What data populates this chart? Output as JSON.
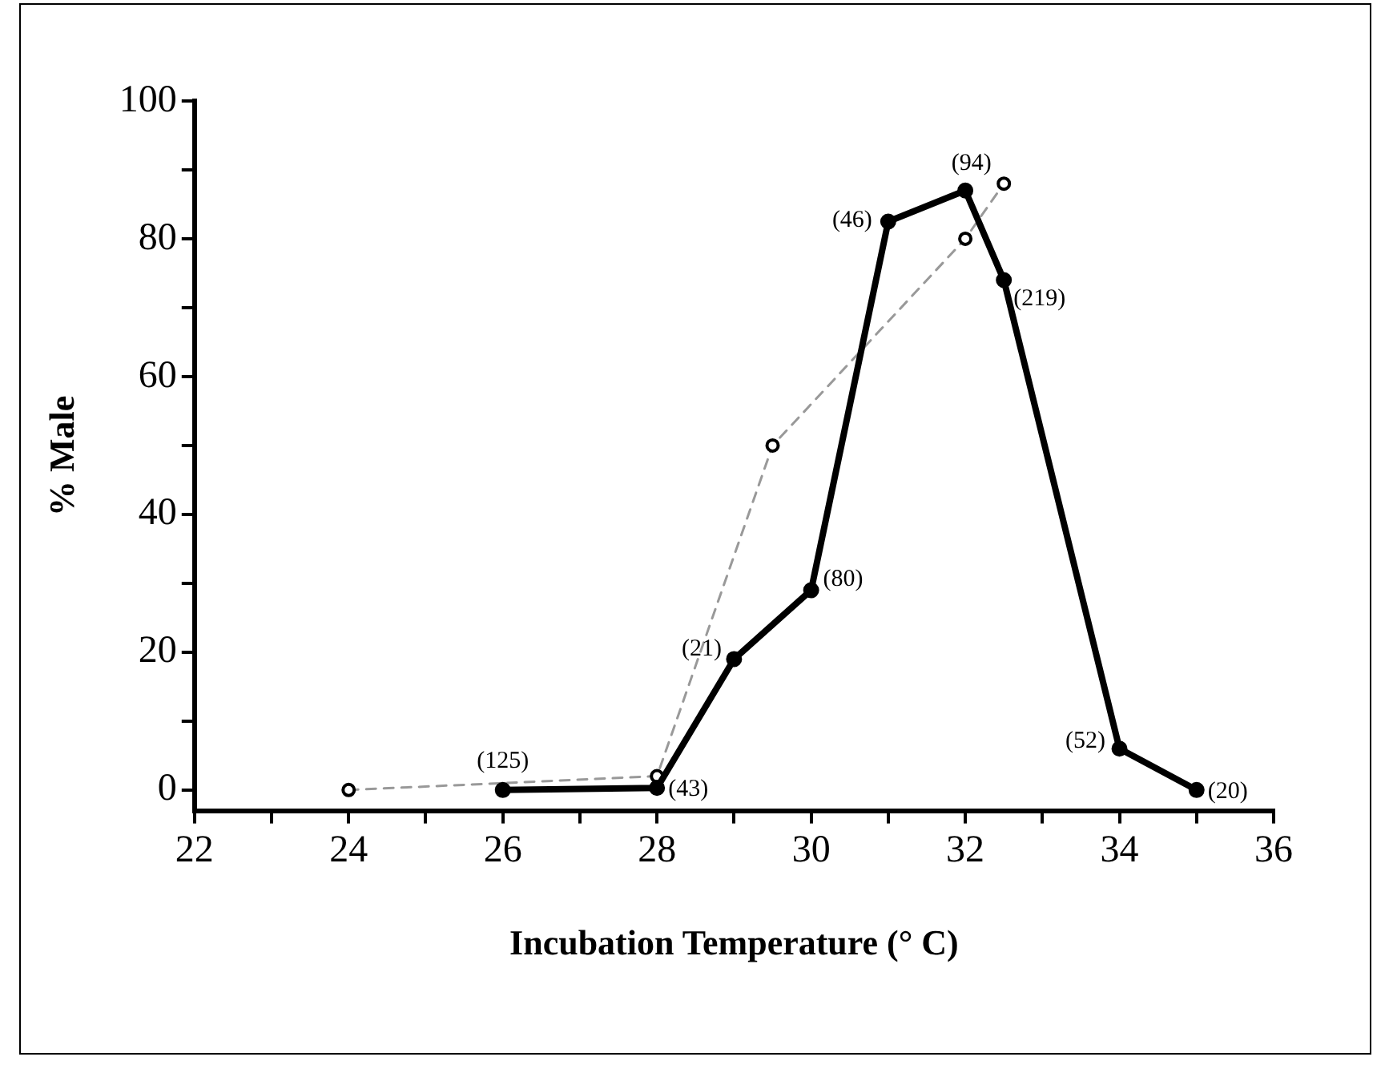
{
  "chart_data": {
    "type": "line",
    "xlabel": "Incubation Temperature (° C)",
    "ylabel": "% Male",
    "xlim": [
      22,
      36
    ],
    "ylim": [
      -3,
      100
    ],
    "xticks": [
      22,
      {
        "value": 23,
        "label": null
      },
      24,
      {
        "value": 25,
        "label": null
      },
      26,
      {
        "value": 27,
        "label": null
      },
      28,
      {
        "value": 29,
        "label": null
      },
      30,
      {
        "value": 31,
        "label": null
      },
      32,
      {
        "value": 33,
        "label": null
      },
      34,
      {
        "value": 35,
        "label": null
      },
      36
    ],
    "yticks": [
      0,
      {
        "value": 10,
        "label": null
      },
      20,
      {
        "value": 30,
        "label": null
      },
      40,
      {
        "value": 50,
        "label": null
      },
      60,
      {
        "value": 70,
        "label": null
      },
      80,
      {
        "value": 90,
        "label": null
      },
      100
    ],
    "grid": false,
    "legend": false,
    "marker": "circle",
    "series": [
      {
        "color": "#000000",
        "line_style": "solid",
        "x": [
          26,
          28,
          29,
          30,
          31,
          32,
          32.5,
          34,
          35
        ],
        "values": [
          0,
          0.3,
          19,
          29,
          82.5,
          87,
          74,
          6,
          0
        ]
      },
      {
        "color": "#999999",
        "line_style": "dashed",
        "x": [
          24,
          28,
          29.5,
          32,
          32.5
        ],
        "values": [
          0,
          2,
          50,
          80,
          88
        ]
      }
    ],
    "annotations": [
      {
        "text": "(125)",
        "x": 26,
        "y": 0
      },
      {
        "text": "(43)",
        "x": 28,
        "y": 0.3
      },
      {
        "text": "(21)",
        "x": 29,
        "y": 19
      },
      {
        "text": "(80)",
        "x": 30,
        "y": 29
      },
      {
        "text": "(46)",
        "x": 31,
        "y": 82.5
      },
      {
        "text": "(94)",
        "x": 32,
        "y": 87
      },
      {
        "text": "(219)",
        "x": 32.5,
        "y": 74
      },
      {
        "text": "(52)",
        "x": 34,
        "y": 6
      },
      {
        "text": "(20)",
        "x": 35,
        "y": 0
      }
    ]
  }
}
